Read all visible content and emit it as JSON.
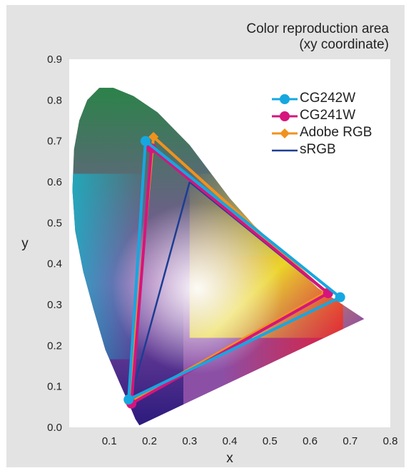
{
  "chart_data": {
    "type": "line",
    "title": "Color reproduction area",
    "subtitle": "(xy coordinate)",
    "xlabel": "x",
    "ylabel": "y",
    "xlim": [
      0,
      0.8
    ],
    "ylim": [
      0,
      0.9
    ],
    "xticks": [
      "0.1",
      "0.2",
      "0.3",
      "0.4",
      "0.5",
      "0.6",
      "0.7",
      "0.8"
    ],
    "yticks": [
      "0.0",
      "0.1",
      "0.2",
      "0.3",
      "0.4",
      "0.5",
      "0.6",
      "0.7",
      "0.8",
      "0.9"
    ],
    "grid": false,
    "legend_position": "top-right",
    "series": [
      {
        "name": "CG242W",
        "color": "#16a7e0",
        "marker": "circle",
        "x": [
          0.19,
          0.675,
          0.148,
          0.19
        ],
        "y": [
          0.7,
          0.318,
          0.068,
          0.7
        ]
      },
      {
        "name": "CG241W",
        "color": "#d6147d",
        "marker": "circle",
        "x": [
          0.205,
          0.645,
          0.155,
          0.205
        ],
        "y": [
          0.682,
          0.328,
          0.058,
          0.682
        ]
      },
      {
        "name": "Adobe RGB",
        "color": "#f0921e",
        "marker": "diamond",
        "x": [
          0.21,
          0.64,
          0.15,
          0.21
        ],
        "y": [
          0.71,
          0.33,
          0.06,
          0.71
        ]
      },
      {
        "name": "sRGB",
        "color": "#1c3d93",
        "marker": "none",
        "x": [
          0.3,
          0.64,
          0.15,
          0.3
        ],
        "y": [
          0.6,
          0.33,
          0.06,
          0.6
        ]
      }
    ]
  }
}
